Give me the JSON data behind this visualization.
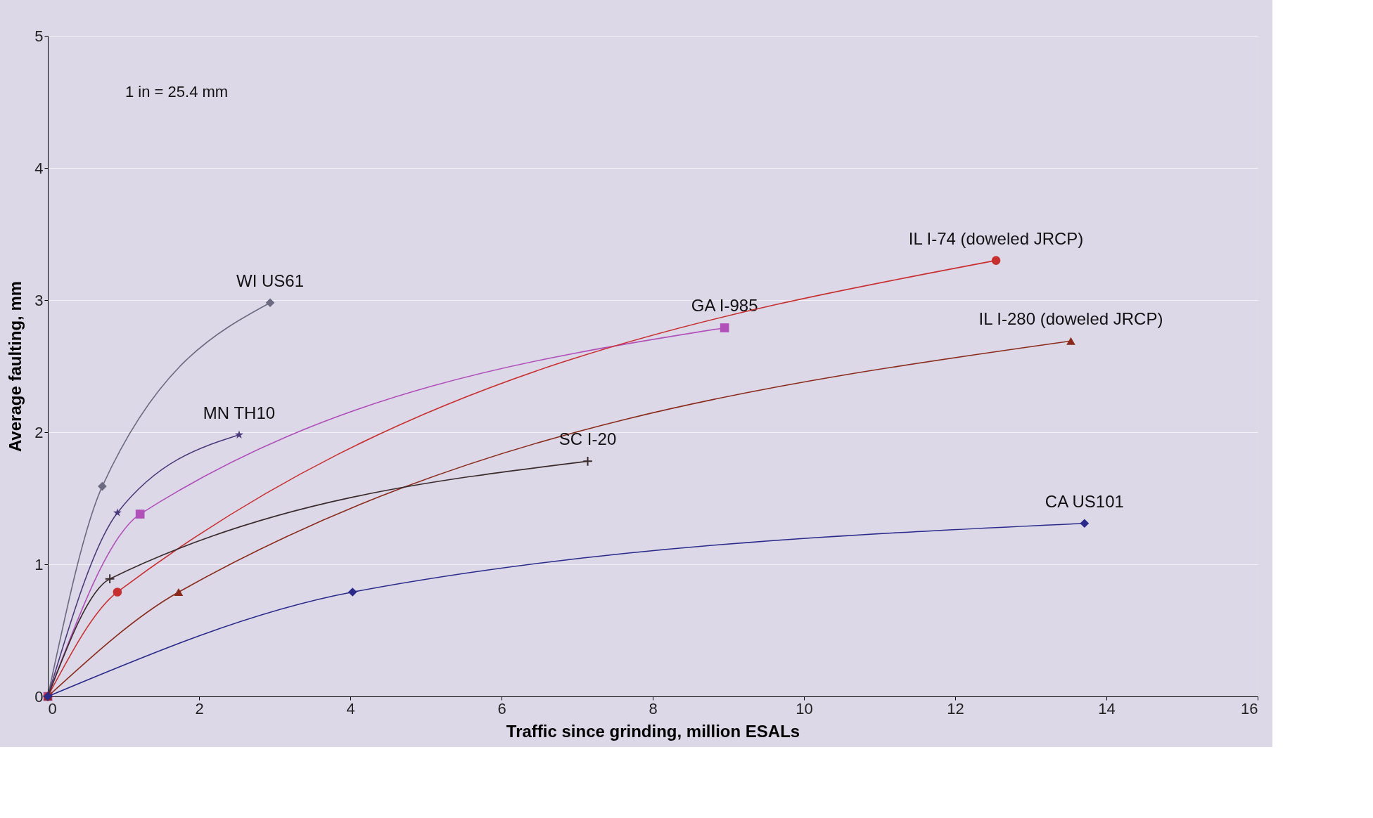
{
  "chart_data": {
    "type": "line",
    "xlabel": "Traffic since grinding, million ESALs",
    "ylabel": "Average faulting, mm",
    "xlim": [
      0,
      16
    ],
    "xticks": [
      0,
      2,
      4,
      6,
      8,
      10,
      12,
      14,
      16
    ],
    "ylim": [
      0,
      5
    ],
    "yticks": [
      0,
      1,
      2,
      3,
      4,
      5
    ],
    "grid": "y",
    "legend": false,
    "annotations": [
      "1 in = 25.4 mm"
    ],
    "series": [
      {
        "name": "WI US61",
        "color": "#6a6a80",
        "marker": "diamond",
        "x": [
          0,
          0.72,
          2.94
        ],
        "values": [
          0,
          1.59,
          2.98
        ]
      },
      {
        "name": "MN TH10",
        "color": "#4a3a7a",
        "marker": "star",
        "x": [
          0,
          0.92,
          2.53
        ],
        "values": [
          0,
          1.39,
          1.98
        ]
      },
      {
        "name": "GA I-985",
        "color": "#b050b8",
        "marker": "square",
        "x": [
          0,
          1.22,
          8.95
        ],
        "values": [
          0,
          1.38,
          2.79
        ]
      },
      {
        "name": "IL I-74 (doweled JRCP)",
        "color": "#c83030",
        "marker": "circle",
        "x": [
          0,
          0.92,
          12.54
        ],
        "values": [
          0,
          0.79,
          3.3
        ]
      },
      {
        "name": "IL I-280 (doweled JRCP)",
        "color": "#8a2a1a",
        "marker": "triangle",
        "x": [
          0,
          1.73,
          13.53
        ],
        "values": [
          0,
          0.79,
          2.69
        ]
      },
      {
        "name": "SC I-20",
        "color": "#3a2a2a",
        "marker": "cross",
        "x": [
          0,
          0.82,
          7.14
        ],
        "values": [
          0,
          0.89,
          1.78
        ]
      },
      {
        "name": "CA US101",
        "color": "#2a2a8a",
        "marker": "diamond",
        "x": [
          0,
          4.03,
          13.71
        ],
        "values": [
          0,
          0.79,
          1.31
        ]
      }
    ]
  }
}
